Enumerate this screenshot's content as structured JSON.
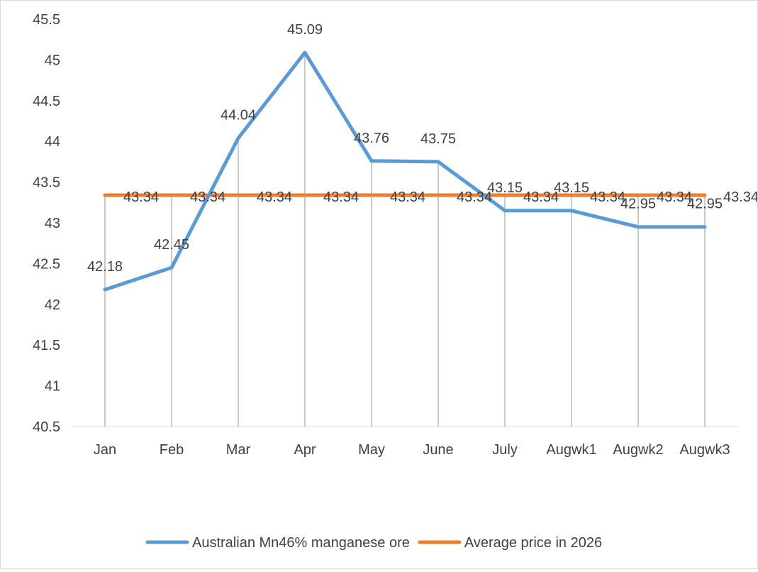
{
  "chart_data": {
    "type": "line",
    "categories": [
      "Jan",
      "Feb",
      "Mar",
      "Apr",
      "May",
      "June",
      "July",
      "Augwk1",
      "Augwk2",
      "Augwk3"
    ],
    "series": [
      {
        "name": "Australian Mn46% manganese ore",
        "color": "#5b9bd5",
        "values": [
          42.18,
          42.45,
          44.04,
          45.09,
          43.76,
          43.75,
          43.15,
          43.15,
          42.95,
          42.95
        ],
        "labels": [
          "42.18",
          "42.45",
          "44.04",
          "45.09",
          "43.76",
          "43.75",
          "43.15",
          "43.15",
          "42.95",
          "42.95"
        ]
      },
      {
        "name": "Average price in 2026",
        "color": "#ed7d31",
        "values": [
          43.34,
          43.34,
          43.34,
          43.34,
          43.34,
          43.34,
          43.34,
          43.34,
          43.34,
          43.34
        ],
        "labels": [
          "43.34",
          "43.34",
          "43.34",
          "43.34",
          "43.34",
          "43.34",
          "43.34",
          "43.34",
          "43.34",
          "43.34"
        ]
      }
    ],
    "ylim": [
      40.5,
      45.5
    ],
    "yticks": [
      "40.5",
      "41",
      "41.5",
      "42",
      "42.5",
      "43",
      "43.5",
      "44",
      "44.5",
      "45",
      "45.5"
    ],
    "drop_lines": true,
    "legend": "bottom"
  }
}
